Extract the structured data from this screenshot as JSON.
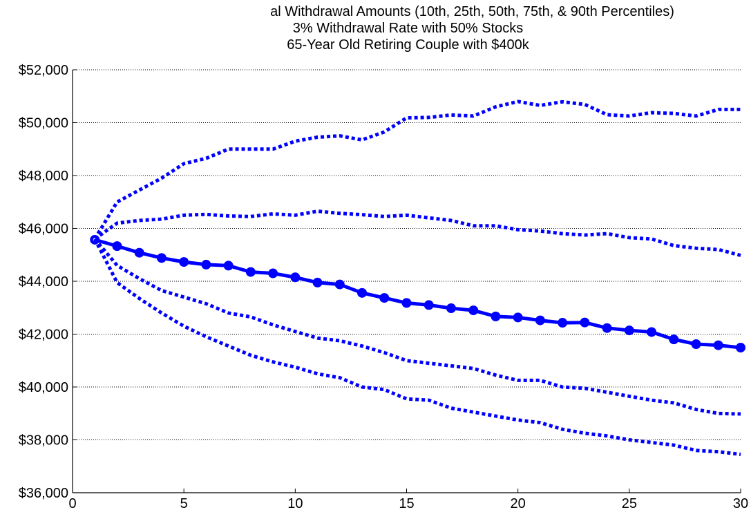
{
  "chart_data": {
    "type": "line",
    "title_lines": [
      "al Withdrawal Amounts (10th, 25th, 50th, 75th, & 90th Percentiles)",
      "3% Withdrawal Rate with 50% Stocks",
      "65-Year Old Retiring Couple with $400k"
    ],
    "xlabel": "",
    "ylabel": "",
    "xlim": [
      0,
      30
    ],
    "ylim": [
      36000,
      52000
    ],
    "x_ticks": [
      0,
      5,
      10,
      15,
      20,
      25,
      30
    ],
    "y_ticks": [
      36000,
      38000,
      40000,
      42000,
      44000,
      46000,
      48000,
      50000,
      52000
    ],
    "y_tick_labels": [
      "$36,000",
      "$38,000",
      "$40,000",
      "$42,000",
      "$44,000",
      "$46,000",
      "$48,000",
      "$50,000",
      "$52,000"
    ],
    "grid_y": true,
    "grid_style": "dotted",
    "x": [
      1,
      2,
      3,
      4,
      5,
      6,
      7,
      8,
      9,
      10,
      11,
      12,
      13,
      14,
      15,
      16,
      17,
      18,
      19,
      20,
      21,
      22,
      23,
      24,
      25,
      26,
      27,
      28,
      29,
      30
    ],
    "series": [
      {
        "style": "dotted",
        "color": "#0000ff",
        "values": [
          45600,
          47000,
          47450,
          47900,
          48450,
          48650,
          49000,
          49000,
          49000,
          49300,
          49450,
          49500,
          49350,
          49650,
          50180,
          50200,
          50290,
          50250,
          50600,
          50800,
          50650,
          50790,
          50690,
          50300,
          50250,
          50380,
          50350,
          50250,
          50500,
          50500
        ]
      },
      {
        "style": "dotted",
        "color": "#0000ff",
        "values": [
          45600,
          46200,
          46300,
          46350,
          46500,
          46530,
          46470,
          46450,
          46550,
          46500,
          46650,
          46570,
          46520,
          46450,
          46500,
          46400,
          46300,
          46100,
          46100,
          45950,
          45900,
          45800,
          45750,
          45800,
          45650,
          45600,
          45350,
          45250,
          45200,
          44980
        ]
      },
      {
        "style": "solid-marker",
        "color": "#0000ff",
        "values": [
          45570,
          45330,
          45080,
          44880,
          44730,
          44630,
          44590,
          44350,
          44300,
          44150,
          43950,
          43880,
          43560,
          43370,
          43180,
          43100,
          42980,
          42900,
          42670,
          42630,
          42520,
          42430,
          42440,
          42230,
          42140,
          42080,
          41800,
          41620,
          41580,
          41490
        ]
      },
      {
        "style": "dotted",
        "color": "#0000ff",
        "values": [
          45600,
          44600,
          44100,
          43650,
          43400,
          43150,
          42800,
          42650,
          42350,
          42100,
          41850,
          41750,
          41550,
          41300,
          41000,
          40900,
          40800,
          40700,
          40450,
          40250,
          40250,
          40000,
          39950,
          39800,
          39650,
          39500,
          39400,
          39150,
          39000,
          38980
        ]
      },
      {
        "style": "dotted",
        "color": "#0000ff",
        "values": [
          45600,
          43950,
          43350,
          42800,
          42300,
          41900,
          41550,
          41200,
          40950,
          40750,
          40500,
          40350,
          40000,
          39900,
          39550,
          39500,
          39200,
          39050,
          38900,
          38750,
          38650,
          38400,
          38250,
          38150,
          38000,
          37900,
          37800,
          37600,
          37550,
          37450
        ]
      }
    ]
  }
}
